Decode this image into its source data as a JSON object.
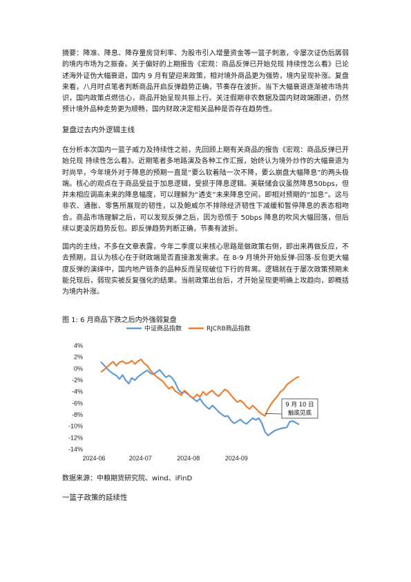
{
  "summary": "摘要：降准、降息、降存量房贷利率、为股市引入增量资金等一篮子刺激，令屡次证伪后孱弱的境内市场为之振奋。关于偏好的上期报告《宏观：商品反弹已开始兑现 持续性怎么看》已论述海外证伪大幅衰退，国内 9 月有望迎来政策，相对境外商品更为强势，境内呈现补涨。复盘来看，八月时点笔者判断商品开启反弹趋势正确，节奏存在波折。当下大幅衰退逐渐被市场共识，国内政策点燃信心，商品开始呈现共振上行。关注假期非农数据及国内财政端跟进，仍然预计境外品种走势更为顺畅，国内财政决定相关品种是否存在趋势性。",
  "section1_title": "复盘过去内外逻辑主线",
  "para2": "在分析本次国内一篮子威力及持续性之前，先回顾上期有关商品的报告《宏观：商品反弹已开始兑现 持续性怎么看》。近期笔者多地路演及各种工作汇报，始终认为境外炒作的大幅衰退为时尚早，今年境外对于降息的预期一直是“要么软着陆一次不降，要么崩盘大幅降息”的两头极端。核心的观点在于商品受益于加息逻辑，受损于降息逻辑。美联储会议虽然降息50bps，但并未相应调高未来的降息幅度，可以理解为“透支”未来降息空间，即相对预期的“加息”。这与非农、通胀、零售所展现的韧性，以及鲍威尔不排除经济韧性下减缓和暂停降息的表态相吻合。商品市场理解之后，可以发现反弹之后，因为恐慌于 50bps 降息的吹风大幅回落，但后续以更凌厉趋势反包。即反弹趋势判断正确，节奏有波折。",
  "para3": "国内的主线，不多在文章表露，今年二季度以来核心思路是做政策右侧，即出来再做反应，不去预期，且认为核心在于财政端是否直接激发需求。在 8-9 月境外开始反弹-回落-反包更大幅度反弹的演绎中，国内地产链条的品种反而呈现破位下行的背离。逻辑就在于屡次政策预期未能兑现后，弱现实被反复强化的结果。当前政策出台后，才开始呈现更明确上攻趋向，即概括为境内补涨。",
  "figure_caption": "图 1:  6 月商品下跌之后内外强弱复盘",
  "source_note": "数据来源：中粮期货研究院、wind、iFinD",
  "section2_title": "一篮子政策的延续性",
  "chart_data": {
    "type": "line",
    "title": "",
    "xlabel": "",
    "ylabel": "",
    "x_ticks": [
      "2024-06",
      "2024-07",
      "2024-08",
      "2024-09"
    ],
    "y_ticks": [
      "4%",
      "2%",
      "0%",
      "-2%",
      "-4%",
      "-6%",
      "-8%",
      "-10%",
      "-12%",
      "-14%"
    ],
    "ylim": [
      -14,
      4
    ],
    "x_range_days": [
      0,
      128
    ],
    "x_tick_days": [
      0,
      30,
      61,
      92
    ],
    "grid": false,
    "legend_position": "top",
    "annotation": {
      "line1": "9 月 10 日",
      "line2": "触底见底",
      "x_day": 106,
      "y": -7.8
    },
    "series": [
      {
        "name": "中证商品指数",
        "color": "#5b9bd5",
        "x_days": [
          0,
          2,
          4,
          6,
          8,
          10,
          12,
          14,
          16,
          18,
          20,
          22,
          24,
          26,
          28,
          30,
          32,
          34,
          36,
          38,
          40,
          42,
          44,
          46,
          48,
          50,
          52,
          54,
          56,
          58,
          60,
          62,
          64,
          66,
          68,
          70,
          72,
          74,
          76,
          78,
          80,
          82,
          84,
          86,
          88,
          90,
          92,
          94,
          96,
          98,
          100,
          102,
          104,
          106,
          108,
          110,
          112,
          114,
          116,
          118,
          120,
          122,
          124,
          126,
          128
        ],
        "values": [
          1.2,
          0.6,
          0.0,
          -0.5,
          -0.9,
          -1.2,
          -1.8,
          -1.1,
          -2.0,
          -2.6,
          -1.6,
          -2.0,
          -1.4,
          -1.0,
          -0.6,
          -0.3,
          -0.8,
          -1.0,
          -0.6,
          -0.2,
          -0.9,
          -1.5,
          -1.2,
          -1.6,
          -2.4,
          -3.6,
          -4.2,
          -4.0,
          -4.4,
          -4.8,
          -5.3,
          -5.7,
          -5.2,
          -6.0,
          -6.6,
          -7.0,
          -6.4,
          -6.9,
          -7.5,
          -7.9,
          -8.3,
          -8.2,
          -9.0,
          -9.5,
          -9.2,
          -8.8,
          -9.3,
          -9.6,
          -9.1,
          -8.6,
          -8.9,
          -8.6,
          -9.5,
          -11.0,
          -11.6,
          -11.2,
          -10.8,
          -10.6,
          -10.4,
          -10.3,
          -10.2,
          -9.2,
          -9.1,
          -9.4,
          -9.7
        ]
      },
      {
        "name": "RJCRB商品指数",
        "color": "#ed7d31",
        "x_days": [
          0,
          2,
          4,
          6,
          8,
          10,
          12,
          14,
          16,
          18,
          20,
          22,
          24,
          26,
          28,
          30,
          32,
          34,
          36,
          38,
          40,
          42,
          44,
          46,
          48,
          50,
          52,
          54,
          56,
          58,
          60,
          62,
          64,
          66,
          68,
          70,
          72,
          74,
          76,
          78,
          80,
          82,
          84,
          86,
          88,
          90,
          92,
          94,
          96,
          98,
          100,
          102,
          104,
          106,
          108,
          110,
          112,
          114,
          116,
          118,
          120,
          122,
          124,
          126,
          128
        ],
        "values": [
          -0.6,
          -0.2,
          0.3,
          0.8,
          1.2,
          0.5,
          1.1,
          1.3,
          0.9,
          1.0,
          1.4,
          0.8,
          1.3,
          1.6,
          0.9,
          0.5,
          -0.3,
          -0.9,
          -1.4,
          -1.8,
          -2.2,
          -2.9,
          -3.5,
          -3.1,
          -3.9,
          -4.2,
          -4.6,
          -3.8,
          -4.3,
          -4.9,
          -5.1,
          -4.5,
          -4.9,
          -4.0,
          -4.6,
          -4.1,
          -3.8,
          -4.4,
          -4.8,
          -4.2,
          -3.6,
          -3.9,
          -4.6,
          -5.2,
          -5.8,
          -5.5,
          -5.9,
          -6.6,
          -7.0,
          -6.4,
          -6.9,
          -7.5,
          -7.9,
          -8.2,
          -7.0,
          -6.1,
          -5.4,
          -4.8,
          -4.0,
          -3.6,
          -2.8,
          -2.4,
          -2.0,
          -1.6,
          -1.4
        ]
      }
    ]
  }
}
